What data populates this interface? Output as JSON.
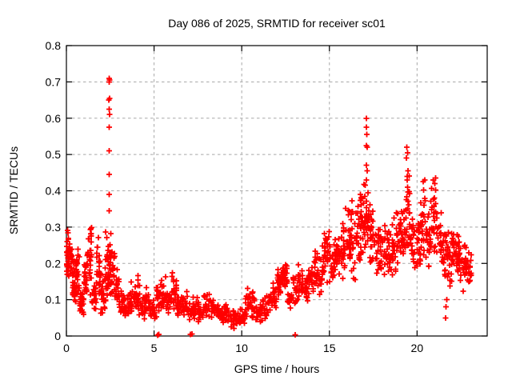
{
  "chart_data": {
    "type": "scatter",
    "title": "Day 086 of 2025, SRMTID for receiver sc01",
    "xlabel": "GPS time / hours",
    "ylabel": "SRMTID / TECUs",
    "xlim": [
      0,
      24
    ],
    "ylim": [
      0,
      0.8
    ],
    "xticks": [
      {
        "v": 0,
        "label": "0"
      },
      {
        "v": 5,
        "label": "5"
      },
      {
        "v": 10,
        "label": "10"
      },
      {
        "v": 15,
        "label": "15"
      },
      {
        "v": 20,
        "label": "20"
      }
    ],
    "yticks": [
      {
        "v": 0.0,
        "label": "0"
      },
      {
        "v": 0.1,
        "label": "0.1"
      },
      {
        "v": 0.2,
        "label": "0.2"
      },
      {
        "v": 0.3,
        "label": "0.3"
      },
      {
        "v": 0.4,
        "label": "0.4"
      },
      {
        "v": 0.5,
        "label": "0.5"
      },
      {
        "v": 0.6,
        "label": "0.6"
      },
      {
        "v": 0.7,
        "label": "0.7"
      },
      {
        "v": 0.8,
        "label": "0.8"
      }
    ],
    "grid": "dashed",
    "legend": "none",
    "marker": {
      "shape": "plus",
      "size": 7
    },
    "colors": {
      "marker": "#ff0000",
      "grid": "#a8a8a8",
      "border": "#000000",
      "text": "#000000",
      "background": "#ffffff"
    },
    "seed": 20250086,
    "scatter_bands_comment": "dense scatter summarized as [hour_start, hour_end, y_min, y_max, n_points] read from the plot",
    "bands": [
      [
        0.0,
        0.15,
        0.15,
        0.3,
        26
      ],
      [
        0.15,
        0.35,
        0.16,
        0.27,
        20
      ],
      [
        0.35,
        0.55,
        0.06,
        0.22,
        26
      ],
      [
        0.55,
        0.75,
        0.08,
        0.25,
        24
      ],
      [
        0.75,
        1.0,
        0.05,
        0.14,
        24
      ],
      [
        1.0,
        1.2,
        0.08,
        0.23,
        24
      ],
      [
        1.2,
        1.45,
        0.1,
        0.35,
        28
      ],
      [
        1.45,
        1.7,
        0.06,
        0.15,
        20
      ],
      [
        1.7,
        1.95,
        0.07,
        0.28,
        24
      ],
      [
        1.95,
        2.2,
        0.05,
        0.18,
        20
      ],
      [
        2.2,
        2.55,
        0.07,
        0.31,
        44
      ],
      [
        2.55,
        2.8,
        0.1,
        0.25,
        20
      ],
      [
        2.8,
        3.0,
        0.08,
        0.2,
        18
      ],
      [
        3.0,
        3.3,
        0.05,
        0.13,
        20
      ],
      [
        3.3,
        3.6,
        0.04,
        0.12,
        18
      ],
      [
        3.6,
        3.9,
        0.06,
        0.16,
        18
      ],
      [
        3.9,
        4.2,
        0.05,
        0.17,
        20
      ],
      [
        4.2,
        4.5,
        0.04,
        0.12,
        18
      ],
      [
        4.5,
        4.8,
        0.05,
        0.15,
        18
      ],
      [
        4.8,
        5.1,
        0.04,
        0.13,
        18
      ],
      [
        5.1,
        5.4,
        0.05,
        0.16,
        18
      ],
      [
        5.4,
        5.7,
        0.06,
        0.17,
        18
      ],
      [
        5.7,
        6.0,
        0.05,
        0.13,
        18
      ],
      [
        6.0,
        6.3,
        0.06,
        0.19,
        20
      ],
      [
        6.3,
        6.6,
        0.04,
        0.12,
        18
      ],
      [
        6.6,
        6.9,
        0.05,
        0.14,
        18
      ],
      [
        6.9,
        7.2,
        0.03,
        0.11,
        16
      ],
      [
        7.2,
        7.5,
        0.04,
        0.12,
        16
      ],
      [
        7.5,
        7.8,
        0.03,
        0.1,
        16
      ],
      [
        7.8,
        8.1,
        0.04,
        0.12,
        16
      ],
      [
        8.1,
        8.4,
        0.03,
        0.13,
        16
      ],
      [
        8.4,
        8.7,
        0.04,
        0.1,
        16
      ],
      [
        8.7,
        9.0,
        0.03,
        0.09,
        16
      ],
      [
        9.0,
        9.3,
        0.03,
        0.1,
        16
      ],
      [
        9.3,
        9.6,
        0.02,
        0.08,
        16
      ],
      [
        9.6,
        9.9,
        0.02,
        0.07,
        16
      ],
      [
        9.9,
        10.2,
        0.02,
        0.08,
        16
      ],
      [
        10.2,
        10.5,
        0.03,
        0.15,
        18
      ],
      [
        10.5,
        10.8,
        0.04,
        0.13,
        16
      ],
      [
        10.8,
        11.1,
        0.03,
        0.1,
        16
      ],
      [
        11.1,
        11.4,
        0.04,
        0.12,
        16
      ],
      [
        11.4,
        11.7,
        0.05,
        0.13,
        16
      ],
      [
        11.7,
        12.0,
        0.06,
        0.15,
        18
      ],
      [
        12.0,
        12.3,
        0.1,
        0.19,
        26
      ],
      [
        12.3,
        12.6,
        0.12,
        0.2,
        26
      ],
      [
        12.6,
        12.9,
        0.07,
        0.14,
        18
      ],
      [
        12.9,
        13.2,
        0.08,
        0.18,
        18
      ],
      [
        13.2,
        13.5,
        0.1,
        0.2,
        18
      ],
      [
        13.5,
        13.8,
        0.08,
        0.18,
        18
      ],
      [
        13.8,
        14.1,
        0.1,
        0.22,
        20
      ],
      [
        14.1,
        14.4,
        0.12,
        0.24,
        20
      ],
      [
        14.4,
        14.7,
        0.1,
        0.26,
        20
      ],
      [
        14.7,
        15.0,
        0.14,
        0.31,
        22
      ],
      [
        15.0,
        15.3,
        0.12,
        0.28,
        20
      ],
      [
        15.3,
        15.6,
        0.15,
        0.3,
        22
      ],
      [
        15.6,
        15.9,
        0.13,
        0.33,
        22
      ],
      [
        15.9,
        16.2,
        0.16,
        0.37,
        22
      ],
      [
        16.2,
        16.5,
        0.15,
        0.38,
        22
      ],
      [
        16.5,
        16.8,
        0.18,
        0.4,
        24
      ],
      [
        16.8,
        17.0,
        0.2,
        0.42,
        18
      ],
      [
        17.0,
        17.3,
        0.22,
        0.44,
        26
      ],
      [
        17.3,
        17.6,
        0.18,
        0.37,
        22
      ],
      [
        17.6,
        17.9,
        0.15,
        0.33,
        20
      ],
      [
        17.9,
        18.2,
        0.16,
        0.32,
        20
      ],
      [
        18.2,
        18.5,
        0.15,
        0.3,
        20
      ],
      [
        18.5,
        18.8,
        0.16,
        0.33,
        20
      ],
      [
        18.8,
        19.1,
        0.18,
        0.35,
        22
      ],
      [
        19.1,
        19.35,
        0.2,
        0.38,
        20
      ],
      [
        19.35,
        19.6,
        0.22,
        0.46,
        24
      ],
      [
        19.6,
        19.9,
        0.18,
        0.35,
        20
      ],
      [
        19.9,
        20.2,
        0.17,
        0.33,
        20
      ],
      [
        20.2,
        20.5,
        0.2,
        0.43,
        22
      ],
      [
        20.5,
        20.8,
        0.18,
        0.38,
        22
      ],
      [
        20.8,
        21.1,
        0.2,
        0.43,
        22
      ],
      [
        21.1,
        21.4,
        0.16,
        0.35,
        20
      ],
      [
        21.4,
        21.7,
        0.14,
        0.3,
        20
      ],
      [
        21.7,
        22.0,
        0.13,
        0.3,
        22
      ],
      [
        22.0,
        22.3,
        0.14,
        0.33,
        22
      ],
      [
        22.3,
        22.6,
        0.13,
        0.28,
        24
      ],
      [
        22.6,
        22.9,
        0.12,
        0.26,
        24
      ],
      [
        22.9,
        23.1,
        0.14,
        0.25,
        14
      ]
    ],
    "outlier_points": [
      [
        2.43,
        0.345
      ],
      [
        2.45,
        0.39
      ],
      [
        2.43,
        0.445
      ],
      [
        2.45,
        0.51
      ],
      [
        2.44,
        0.575
      ],
      [
        2.46,
        0.61
      ],
      [
        2.44,
        0.625
      ],
      [
        2.42,
        0.65
      ],
      [
        2.47,
        0.655
      ],
      [
        2.44,
        0.7
      ],
      [
        2.46,
        0.705
      ],
      [
        2.43,
        0.71
      ],
      [
        17.12,
        0.6
      ],
      [
        17.1,
        0.575
      ],
      [
        17.13,
        0.555
      ],
      [
        17.1,
        0.525
      ],
      [
        17.15,
        0.52
      ],
      [
        17.11,
        0.47
      ],
      [
        17.16,
        0.455
      ],
      [
        17.12,
        0.43
      ],
      [
        19.42,
        0.52
      ],
      [
        19.46,
        0.505
      ],
      [
        19.4,
        0.49
      ],
      [
        19.48,
        0.455
      ],
      [
        19.44,
        0.43
      ],
      [
        20.35,
        0.425
      ],
      [
        20.44,
        0.43
      ],
      [
        20.92,
        0.43
      ],
      [
        21.0,
        0.42
      ],
      [
        21.06,
        0.435
      ],
      [
        5.2,
        0.002
      ],
      [
        5.27,
        0.004
      ],
      [
        7.08,
        0.004
      ],
      [
        7.16,
        0.006
      ],
      [
        13.05,
        0.003
      ],
      [
        21.62,
        0.05
      ],
      [
        21.66,
        0.08
      ],
      [
        21.7,
        0.1
      ]
    ]
  }
}
